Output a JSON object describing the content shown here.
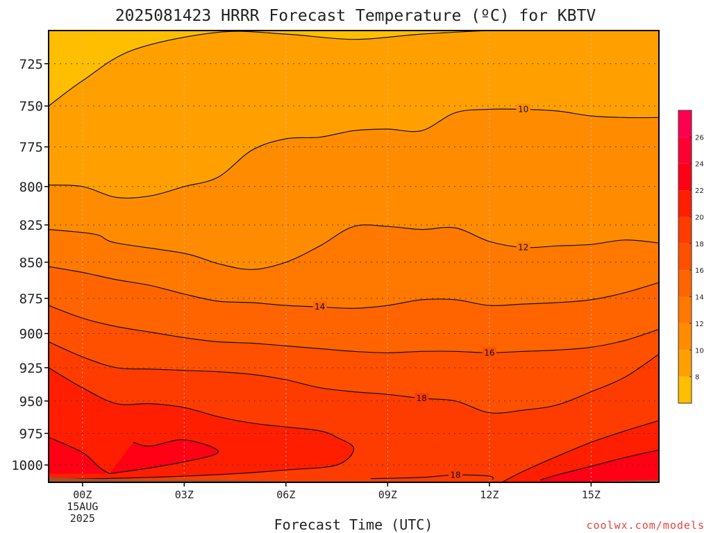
{
  "chart_data": {
    "type": "contour",
    "title": "2025081423 HRRR Forecast Temperature (ºC) for KBTV",
    "xlabel": "Forecast Time (UTC)",
    "ylabel": "",
    "credit": "coolwx.com/models",
    "x_ticks": [
      {
        "hour": 0,
        "label": "00Z",
        "sub1": "15AUG",
        "sub2": "2025"
      },
      {
        "hour": 3,
        "label": "03Z"
      },
      {
        "hour": 6,
        "label": "06Z"
      },
      {
        "hour": 9,
        "label": "09Z"
      },
      {
        "hour": 12,
        "label": "12Z"
      },
      {
        "hour": 15,
        "label": "15Z"
      }
    ],
    "xlim": [
      -1,
      17
    ],
    "y_ticks": [
      725,
      750,
      775,
      800,
      825,
      850,
      875,
      900,
      925,
      950,
      975,
      1000
    ],
    "ylim": [
      1014,
      706
    ],
    "y_scale": "log",
    "colorbar": {
      "ticks": [
        8,
        10,
        12,
        14,
        16,
        18,
        20,
        22,
        24,
        26
      ],
      "range": [
        6,
        28
      ],
      "colors": [
        "#ffbe00",
        "#ffa000",
        "#ff8c00",
        "#ff7800",
        "#ff6400",
        "#ff5000",
        "#ff3c00",
        "#ff1e00",
        "#ff0014",
        "#ff0032",
        "#ff0050"
      ]
    },
    "ground_color": "#a0522d",
    "contours": [
      {
        "value": 8,
        "label": null,
        "points": [
          [
            -1,
            750
          ],
          [
            0,
            735
          ],
          [
            1.5,
            717
          ],
          [
            4,
            707
          ],
          [
            6,
            708
          ],
          [
            8,
            711
          ],
          [
            10,
            708
          ],
          [
            12,
            706
          ]
        ]
      },
      {
        "value": 10,
        "label": "10",
        "label_at": 13,
        "points": [
          [
            -1,
            799
          ],
          [
            0,
            800
          ],
          [
            1,
            807
          ],
          [
            2,
            806
          ],
          [
            3,
            800
          ],
          [
            4,
            794
          ],
          [
            5,
            777
          ],
          [
            6,
            770
          ],
          [
            7,
            769
          ],
          [
            8,
            765
          ],
          [
            9,
            764
          ],
          [
            10,
            765
          ],
          [
            11,
            754
          ],
          [
            12,
            752
          ],
          [
            13,
            752
          ],
          [
            14,
            753
          ],
          [
            15,
            756
          ],
          [
            16,
            757
          ],
          [
            17,
            757
          ]
        ]
      },
      {
        "value": 12,
        "label": "12",
        "label_at": 13,
        "points": [
          [
            -1,
            828
          ],
          [
            0,
            830
          ],
          [
            0.5,
            832
          ],
          [
            1,
            837
          ],
          [
            3,
            844
          ],
          [
            4,
            851
          ],
          [
            5,
            855
          ],
          [
            6,
            850
          ],
          [
            7,
            839
          ],
          [
            8,
            826
          ],
          [
            9,
            826
          ],
          [
            10,
            828
          ],
          [
            11,
            827
          ],
          [
            12,
            836
          ],
          [
            13,
            840
          ],
          [
            14,
            839
          ],
          [
            15,
            838
          ],
          [
            16,
            835
          ],
          [
            17,
            837
          ]
        ]
      },
      {
        "value": 14,
        "label": "14",
        "label_at": 7,
        "points": [
          [
            -1,
            853
          ],
          [
            0,
            857
          ],
          [
            1,
            862
          ],
          [
            2,
            866
          ],
          [
            3,
            872
          ],
          [
            4,
            877
          ],
          [
            5,
            878
          ],
          [
            6,
            880
          ],
          [
            7,
            881
          ],
          [
            8,
            882
          ],
          [
            9,
            880
          ],
          [
            10,
            876
          ],
          [
            11,
            876
          ],
          [
            12,
            880
          ],
          [
            13,
            879
          ],
          [
            14,
            878
          ],
          [
            15,
            876
          ],
          [
            16,
            871
          ],
          [
            17,
            864
          ]
        ]
      },
      {
        "value": 16,
        "label": "16",
        "label_at": 12,
        "points": [
          [
            -1,
            880
          ],
          [
            0,
            889
          ],
          [
            1,
            895
          ],
          [
            2,
            899
          ],
          [
            3,
            903
          ],
          [
            4,
            906
          ],
          [
            5,
            907
          ],
          [
            6,
            909
          ],
          [
            7,
            911
          ],
          [
            8,
            913
          ],
          [
            9,
            914
          ],
          [
            10,
            913
          ],
          [
            11,
            913
          ],
          [
            12,
            914
          ],
          [
            13,
            913
          ],
          [
            14,
            912
          ],
          [
            15,
            910
          ],
          [
            16,
            905
          ],
          [
            17,
            897
          ]
        ]
      },
      {
        "value": 18,
        "label": "18",
        "label_at": 10,
        "points": [
          [
            -1,
            906
          ],
          [
            0,
            917
          ],
          [
            1,
            925
          ],
          [
            2,
            926
          ],
          [
            3,
            927
          ],
          [
            4,
            928
          ],
          [
            5,
            930
          ],
          [
            6,
            934
          ],
          [
            7,
            940
          ],
          [
            8,
            943
          ],
          [
            9,
            945
          ],
          [
            10,
            948
          ],
          [
            11,
            950
          ],
          [
            12,
            959
          ],
          [
            13,
            957
          ],
          [
            14,
            953
          ],
          [
            15,
            943
          ],
          [
            16,
            932
          ],
          [
            17,
            915
          ]
        ]
      },
      {
        "value": 20,
        "label": null,
        "points": [
          [
            -1,
            925
          ],
          [
            0,
            940
          ],
          [
            1,
            952
          ],
          [
            2,
            952
          ],
          [
            3,
            955
          ],
          [
            4,
            962
          ],
          [
            5,
            967
          ],
          [
            6,
            970
          ],
          [
            7,
            973
          ],
          [
            7.5,
            978
          ],
          [
            8,
            987
          ],
          [
            7.5,
            1000
          ],
          [
            6,
            1004
          ],
          [
            4.5,
            1007
          ],
          [
            3,
            1009
          ],
          [
            2,
            1010
          ],
          [
            0.5,
            1011
          ],
          [
            -0.5,
            1011
          ]
        ]
      },
      {
        "value": 20,
        "label": null,
        "points": [
          [
            12.3,
            1015
          ],
          [
            13,
            1005
          ],
          [
            14,
            993
          ],
          [
            15,
            982
          ],
          [
            16,
            973
          ],
          [
            17,
            965
          ]
        ]
      },
      {
        "value": 22,
        "label": null,
        "points": [
          [
            -1,
            978
          ],
          [
            0,
            990
          ],
          [
            0.5,
            1002
          ],
          [
            0.8,
            1007
          ]
        ]
      },
      {
        "value": 22,
        "label": null,
        "points": [
          [
            1.5,
            982
          ],
          [
            2,
            985
          ],
          [
            3,
            980
          ],
          [
            4,
            990
          ],
          [
            2.5,
            1000
          ],
          [
            0.8,
            1007
          ]
        ]
      },
      {
        "value": 22,
        "label": null,
        "points": [
          [
            13.5,
            1012
          ],
          [
            14,
            1008
          ],
          [
            15,
            1001
          ],
          [
            16,
            994
          ],
          [
            17,
            988
          ]
        ]
      },
      {
        "value": 18,
        "label": "18",
        "label_at": 11,
        "points": [
          [
            8.5,
            1011
          ],
          [
            10,
            1010
          ],
          [
            11,
            1008
          ],
          [
            12,
            1009
          ],
          [
            12.1,
            1012
          ]
        ]
      }
    ]
  }
}
